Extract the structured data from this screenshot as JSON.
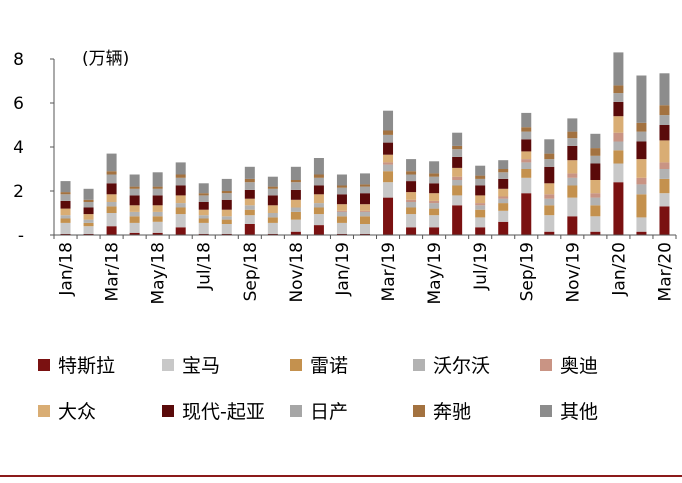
{
  "chart_data": {
    "type": "bar",
    "stacked": true,
    "unit_label": "(万辆)",
    "ylim": [
      0,
      8
    ],
    "yticks": [
      {
        "value": 0,
        "label": "-"
      },
      {
        "value": 2,
        "label": "2"
      },
      {
        "value": 4,
        "label": "4"
      },
      {
        "value": 6,
        "label": "6"
      },
      {
        "value": 8,
        "label": "8"
      }
    ],
    "categories": [
      "Jan/18",
      "Feb/18",
      "Mar/18",
      "Apr/18",
      "May/18",
      "Jun/18",
      "Jul/18",
      "Aug/18",
      "Sep/18",
      "Oct/18",
      "Nov/18",
      "Dec/18",
      "Jan/19",
      "Feb/19",
      "Mar/19",
      "Apr/19",
      "May/19",
      "Jun/19",
      "Jul/19",
      "Aug/19",
      "Sep/19",
      "Oct/19",
      "Nov/19",
      "Dec/19",
      "Jan/20",
      "Feb/20",
      "Mar/20"
    ],
    "xtick_labels": [
      "Jan/18",
      "Mar/18",
      "May/18",
      "Jul/18",
      "Sep/18",
      "Nov/18",
      "Jan/19",
      "Mar/19",
      "May/19",
      "Jul/19",
      "Sep/19",
      "Nov/19",
      "Jan/20",
      "Mar/20"
    ],
    "legend_position": "bottom",
    "series": [
      {
        "name": "特斯拉",
        "color": "#7a1111",
        "values": [
          0.05,
          0.05,
          0.4,
          0.1,
          0.1,
          0.35,
          0.05,
          0.05,
          0.5,
          0.05,
          0.15,
          0.45,
          0.05,
          0.05,
          1.7,
          0.35,
          0.35,
          1.35,
          0.35,
          0.6,
          1.9,
          0.15,
          0.85,
          0.15,
          2.4,
          0.15,
          1.3
        ]
      },
      {
        "name": "宝马",
        "color": "#c8c8c8",
        "values": [
          0.5,
          0.35,
          0.6,
          0.45,
          0.5,
          0.6,
          0.5,
          0.45,
          0.4,
          0.5,
          0.55,
          0.5,
          0.5,
          0.45,
          0.7,
          0.6,
          0.55,
          0.45,
          0.45,
          0.5,
          0.7,
          0.75,
          0.85,
          0.7,
          0.85,
          0.65,
          0.6
        ]
      },
      {
        "name": "雷诺",
        "color": "#c4914e",
        "values": [
          0.2,
          0.15,
          0.3,
          0.3,
          0.25,
          0.3,
          0.2,
          0.2,
          0.25,
          0.25,
          0.35,
          0.3,
          0.3,
          0.35,
          0.5,
          0.3,
          0.3,
          0.45,
          0.35,
          0.35,
          0.4,
          0.45,
          0.55,
          0.5,
          0.6,
          1.05,
          0.65
        ]
      },
      {
        "name": "沃尔沃",
        "color": "#b2b2b2",
        "values": [
          0.15,
          0.15,
          0.2,
          0.2,
          0.2,
          0.2,
          0.15,
          0.15,
          0.2,
          0.2,
          0.2,
          0.2,
          0.2,
          0.2,
          0.3,
          0.25,
          0.25,
          0.25,
          0.2,
          0.2,
          0.3,
          0.3,
          0.35,
          0.35,
          0.4,
          0.45,
          0.45
        ]
      },
      {
        "name": "奥迪",
        "color": "#c99484",
        "values": [
          0,
          0,
          0,
          0,
          0,
          0,
          0,
          0,
          0,
          0,
          0,
          0,
          0.05,
          0.05,
          0.1,
          0.1,
          0.1,
          0.15,
          0.1,
          0.1,
          0.15,
          0.2,
          0.2,
          0.2,
          0.4,
          0.3,
          0.3
        ]
      },
      {
        "name": "大众",
        "color": "#d9ad74",
        "values": [
          0.3,
          0.25,
          0.35,
          0.3,
          0.3,
          0.35,
          0.25,
          0.3,
          0.3,
          0.35,
          0.35,
          0.4,
          0.3,
          0.3,
          0.35,
          0.35,
          0.35,
          0.4,
          0.35,
          0.35,
          0.35,
          0.5,
          0.6,
          0.6,
          0.75,
          0.85,
          1.0
        ]
      },
      {
        "name": "现代-起亚",
        "color": "#5a0a0a",
        "values": [
          0.35,
          0.3,
          0.5,
          0.45,
          0.45,
          0.45,
          0.35,
          0.45,
          0.4,
          0.45,
          0.45,
          0.4,
          0.45,
          0.5,
          0.55,
          0.5,
          0.45,
          0.5,
          0.45,
          0.45,
          0.55,
          0.75,
          0.65,
          0.75,
          0.65,
          0.8,
          0.7
        ]
      },
      {
        "name": "日产",
        "color": "#a6a6a6",
        "values": [
          0.3,
          0.25,
          0.4,
          0.3,
          0.3,
          0.35,
          0.3,
          0.3,
          0.35,
          0.3,
          0.35,
          0.35,
          0.3,
          0.3,
          0.35,
          0.3,
          0.3,
          0.35,
          0.3,
          0.3,
          0.35,
          0.35,
          0.35,
          0.35,
          0.4,
          0.45,
          0.45
        ]
      },
      {
        "name": "奔驰",
        "color": "#a37240",
        "values": [
          0.1,
          0.1,
          0.15,
          0.1,
          0.1,
          0.15,
          0.1,
          0.1,
          0.15,
          0.1,
          0.1,
          0.15,
          0.1,
          0.1,
          0.2,
          0.15,
          0.15,
          0.15,
          0.15,
          0.15,
          0.2,
          0.25,
          0.3,
          0.35,
          0.35,
          0.4,
          0.45
        ]
      },
      {
        "name": "其他",
        "color": "#8c8c8c",
        "values": [
          0.5,
          0.5,
          0.8,
          0.55,
          0.65,
          0.55,
          0.45,
          0.55,
          0.55,
          0.45,
          0.6,
          0.75,
          0.5,
          0.5,
          0.9,
          0.55,
          0.55,
          0.6,
          0.45,
          0.4,
          0.65,
          0.65,
          0.6,
          0.65,
          1.5,
          2.15,
          1.45
        ]
      }
    ]
  }
}
